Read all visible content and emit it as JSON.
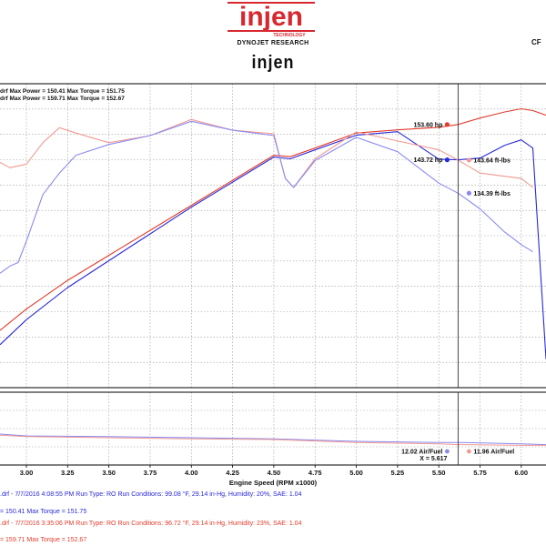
{
  "header": {
    "logo_text": "injen",
    "logo_sub": "TECHNOLOGY",
    "subtitle": "DYNOJET RESEARCH",
    "wordmark": "injen",
    "corner_text": "CF"
  },
  "colors": {
    "run1": "#2a2ad8",
    "run2": "#e23b2b",
    "run1_light": "#8a8af0",
    "run2_light": "#f09a92",
    "grid": "#999999",
    "logo": "#d7282f"
  },
  "legend": {
    "line1": "drf Max Power = 150.41   Max Torque = 151.75",
    "line2": "drf Max Power = 159.71   Max Torque = 152.67"
  },
  "chart_data": {
    "type": "line",
    "xlabel": "Engine Speed (RPM x1000)",
    "x_ticks": [
      3.0,
      3.25,
      3.5,
      3.75,
      4.0,
      4.25,
      4.5,
      4.75,
      5.0,
      5.25,
      5.5,
      5.75,
      6.0
    ],
    "x_tick_labels": [
      "3.00",
      "3.25",
      "3.50",
      "3.75",
      "4.00",
      "4.25",
      "4.50",
      "4.75",
      "5.00",
      "5.25",
      "5.50",
      "5.75",
      "6.00"
    ],
    "xlim": [
      2.84,
      6.15
    ],
    "ylim": [
      80,
      165
    ],
    "cursor_x": 5.617,
    "grid": true,
    "series": [
      {
        "id": "run2_power",
        "color_key": "run2",
        "label": "153.60 hp",
        "x": [
          2.84,
          3.0,
          3.25,
          3.5,
          3.75,
          4.0,
          4.25,
          4.5,
          4.6,
          4.75,
          5.0,
          5.25,
          5.5,
          5.617,
          5.75,
          5.9,
          6.0,
          6.07,
          6.15
        ],
        "y": [
          96,
          102,
          110,
          117,
          124,
          131,
          138,
          145,
          144.6,
          147,
          151.2,
          152.1,
          152.8,
          153.6,
          155.4,
          157.1,
          158,
          157.5,
          156.2
        ]
      },
      {
        "id": "run1_power",
        "color_key": "run1",
        "label": "143.72 hp",
        "x": [
          2.84,
          3.0,
          3.25,
          3.5,
          3.75,
          4.0,
          4.25,
          4.5,
          4.6,
          4.75,
          5.0,
          5.25,
          5.5,
          5.617,
          5.75,
          5.9,
          6.0,
          6.07,
          6.15
        ],
        "y": [
          92,
          99,
          108,
          115.5,
          123,
          130.5,
          137.5,
          144.5,
          144,
          146.5,
          150.6,
          151.6,
          143.9,
          143.72,
          144.2,
          147.8,
          149.3,
          147,
          88
        ]
      },
      {
        "id": "run2_torque",
        "color_key": "run2_light",
        "label": "143.64 ft-lbs",
        "x": [
          2.84,
          2.9,
          3.0,
          3.1,
          3.2,
          3.3,
          3.5,
          3.75,
          4.0,
          4.25,
          4.5,
          4.57,
          4.62,
          4.75,
          5.0,
          5.25,
          5.5,
          5.617,
          5.75,
          6.0,
          6.07
        ],
        "y": [
          143,
          141.5,
          142.5,
          148.5,
          152.7,
          151.2,
          148.5,
          150.5,
          155,
          152,
          151,
          138.5,
          136,
          144,
          151.5,
          149,
          146.5,
          143.64,
          140,
          138.5,
          136
        ]
      },
      {
        "id": "run1_torque",
        "color_key": "run1_light",
        "label": "134.39 ft-lbs",
        "x": [
          2.84,
          2.9,
          2.95,
          3.0,
          3.05,
          3.1,
          3.2,
          3.3,
          3.5,
          3.75,
          4.0,
          4.25,
          4.5,
          4.57,
          4.62,
          4.75,
          5.0,
          5.25,
          5.5,
          5.617,
          5.75,
          5.9,
          6.0,
          6.07
        ],
        "y": [
          112,
          114,
          115,
          121,
          127.5,
          134,
          140,
          145,
          148,
          150.5,
          154.5,
          152,
          150.5,
          138.5,
          136,
          143.5,
          150,
          146,
          137.2,
          134.39,
          130,
          123.5,
          120,
          118
        ]
      }
    ],
    "lower_series": [
      {
        "id": "run1_afr",
        "color_key": "run1_light",
        "label": "12.02 Air/Fuel",
        "x": [
          2.84,
          3.0,
          3.5,
          4.0,
          4.5,
          5.0,
          5.5,
          5.617,
          6.0,
          6.15
        ],
        "y": [
          12.25,
          12.2,
          12.18,
          12.15,
          12.12,
          12.05,
          12.02,
          12.02,
          11.98,
          11.96
        ]
      },
      {
        "id": "run2_afr",
        "color_key": "run2_light",
        "label": "11.96 Air/Fuel",
        "x": [
          2.84,
          3.0,
          3.5,
          4.0,
          4.5,
          5.0,
          5.5,
          5.617,
          6.0,
          6.15
        ],
        "y": [
          12.22,
          12.18,
          12.15,
          12.12,
          12.1,
          12.02,
          11.98,
          11.96,
          11.94,
          11.94
        ]
      }
    ],
    "lower_ylim": [
      11.4,
      13.4
    ],
    "cursor_readout": "X = 5.617"
  },
  "footer": {
    "run1_line1": ".drf - 7/7/2016 4:08:55 PM  Run Type: RO  Run Conditions: 99.08 °F, 29.14 in-Hg,  Humidity:  20%, SAE: 1.04",
    "run1_line2": "= 150.41  Max Torque = 151.75",
    "run2_line1": ".drf - 7/7/2016 3:35:06 PM  Run Type: RO  Run Conditions: 96.72 °F, 29.14 in-Hg,  Humidity:  23%, SAE: 1.04",
    "run2_line2": "= 159.71  Max Torque = 152.67"
  }
}
